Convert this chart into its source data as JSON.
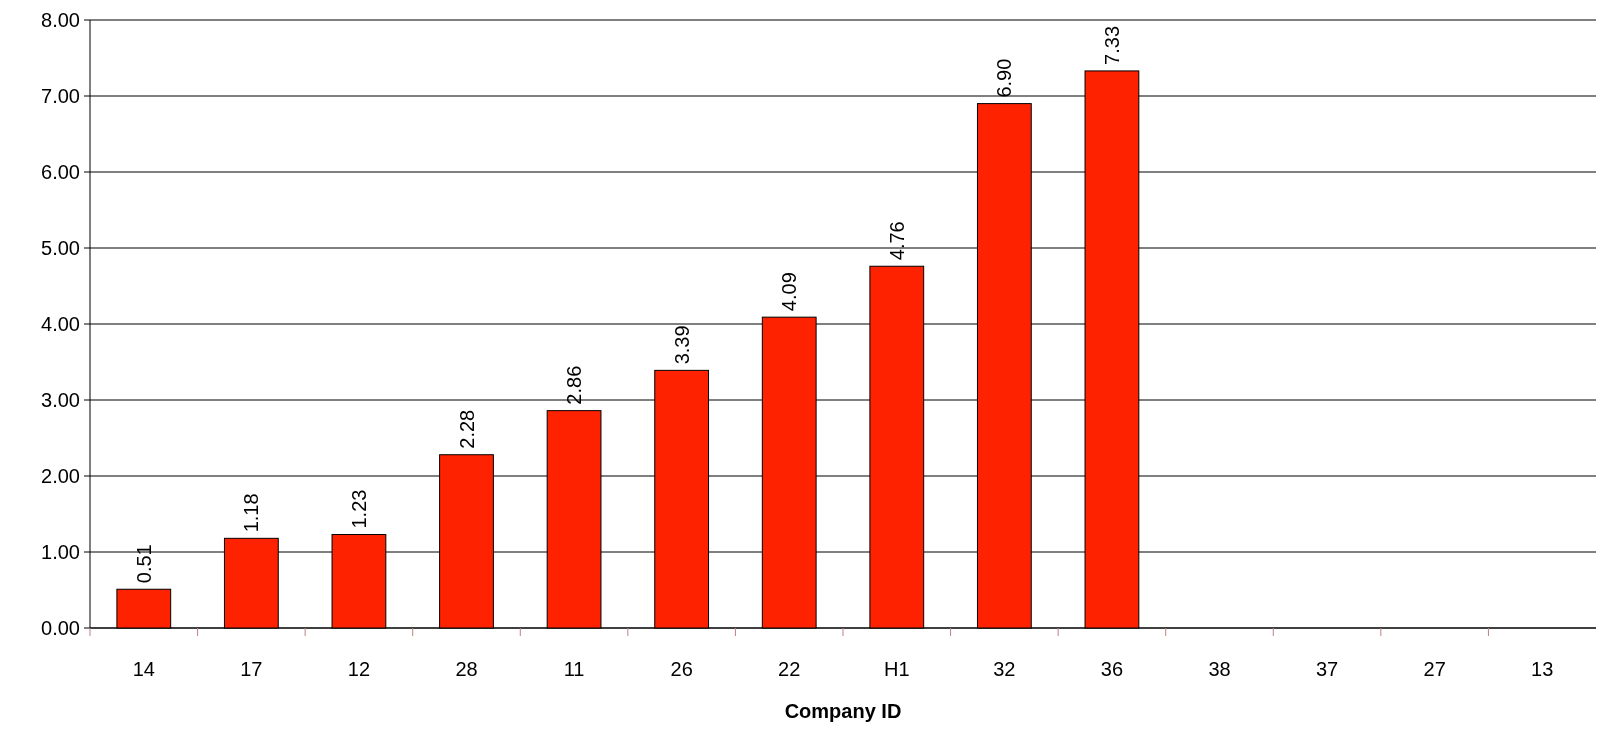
{
  "chart_data": {
    "type": "bar",
    "xlabel": "Company ID",
    "categories": [
      "14",
      "17",
      "12",
      "28",
      "11",
      "26",
      "22",
      "H1",
      "32",
      "36",
      "38",
      "37",
      "27",
      "13"
    ],
    "values": [
      0.51,
      1.18,
      1.23,
      2.28,
      2.86,
      3.39,
      4.09,
      4.76,
      6.9,
      7.33,
      null,
      null,
      null,
      null
    ],
    "value_labels": [
      "0.51",
      "1.18",
      "1.23",
      "2.28",
      "2.86",
      "3.39",
      "4.09",
      "4.76",
      "6.90",
      "7.33",
      null,
      null,
      null,
      null
    ],
    "color": "#ff2200",
    "ylim": [
      0,
      8
    ],
    "yticks": [
      {
        "value": 0,
        "label": "0.00"
      },
      {
        "value": 1,
        "label": "1.00"
      },
      {
        "value": 2,
        "label": "2.00"
      },
      {
        "value": 3,
        "label": "3.00"
      },
      {
        "value": 4,
        "label": "4.00"
      },
      {
        "value": 5,
        "label": "5.00"
      },
      {
        "value": 6,
        "label": "6.00"
      },
      {
        "value": 7,
        "label": "7.00"
      },
      {
        "value": 8,
        "label": "8.00"
      }
    ],
    "grid": "y"
  }
}
